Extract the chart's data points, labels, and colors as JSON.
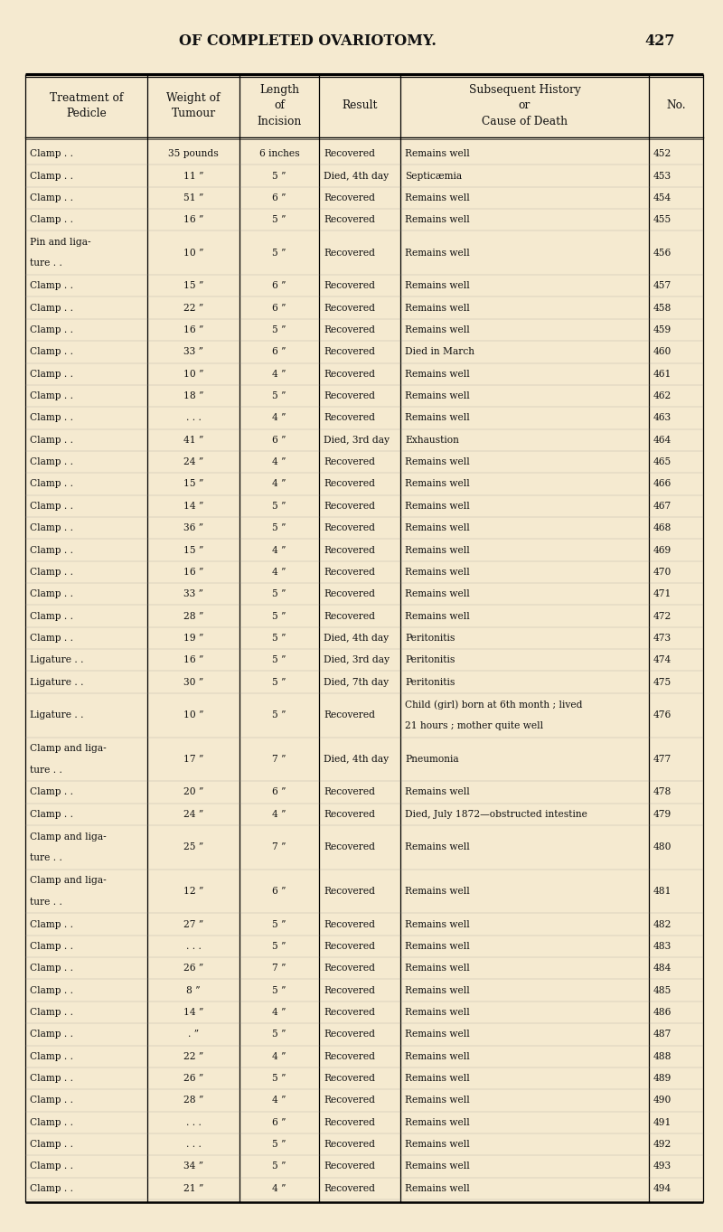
{
  "page_title": "OF COMPLETED OVARIOTOMY.",
  "page_number": "427",
  "bg_color": "#f5ead0",
  "col_headers": [
    "Treatment of\nPedicle",
    "Weight of\nTumour",
    "Length\nof\nIncision",
    "Result",
    "Subsequent History\nor\nCause of Death",
    "No."
  ],
  "rows": [
    [
      "Clamp . .",
      "35 pounds",
      "6 inches",
      "Recovered",
      "Remains well",
      "452"
    ],
    [
      "Clamp . .",
      "11 ”",
      "5 ”",
      "Died, 4th day",
      "Septicæmia",
      "453"
    ],
    [
      "Clamp . .",
      "51 ”",
      "6 ”",
      "Recovered",
      "Remains well",
      "454"
    ],
    [
      "Clamp . .",
      "16 ”",
      "5 ”",
      "Recovered",
      "Remains well",
      "455"
    ],
    [
      "Pin and liga-\nture . .",
      "10 ”",
      "5 ”",
      "Recovered",
      "Remains well",
      "456"
    ],
    [
      "Clamp . .",
      "15 ”",
      "6 ”",
      "Recovered",
      "Remains well",
      "457"
    ],
    [
      "Clamp . .",
      "22 ”",
      "6 ”",
      "Recovered",
      "Remains well",
      "458"
    ],
    [
      "Clamp . .",
      "16 ”",
      "5 ”",
      "Recovered",
      "Remains well",
      "459"
    ],
    [
      "Clamp . .",
      "33 ”",
      "6 ”",
      "Recovered",
      "Died in March",
      "460"
    ],
    [
      "Clamp . .",
      "10 ”",
      "4 ”",
      "Recovered",
      "Remains well",
      "461"
    ],
    [
      "Clamp . .",
      "18 ”",
      "5 ”",
      "Recovered",
      "Remains well",
      "462"
    ],
    [
      "Clamp . .",
      ". . .",
      "4 ”",
      "Recovered",
      "Remains well",
      "463"
    ],
    [
      "Clamp . .",
      "41 ”",
      "6 ”",
      "Died, 3rd day",
      "Exhaustion",
      "464"
    ],
    [
      "Clamp . .",
      "24 ”",
      "4 ”",
      "Recovered",
      "Remains well",
      "465"
    ],
    [
      "Clamp . .",
      "15 ”",
      "4 ”",
      "Recovered",
      "Remains well",
      "466"
    ],
    [
      "Clamp . .",
      "14 ”",
      "5 ”",
      "Recovered",
      "Remains well",
      "467"
    ],
    [
      "Clamp . .",
      "36 ”",
      "5 ”",
      "Recovered",
      "Remains well",
      "468"
    ],
    [
      "Clamp . .",
      "15 ”",
      "4 ”",
      "Recovered",
      "Remains well",
      "469"
    ],
    [
      "Clamp . .",
      "16 ”",
      "4 ”",
      "Recovered",
      "Remains well",
      "470"
    ],
    [
      "Clamp . .",
      "33 ”",
      "5 ”",
      "Recovered",
      "Remains well",
      "471"
    ],
    [
      "Clamp . .",
      "28 ”",
      "5 ”",
      "Recovered",
      "Remains well",
      "472"
    ],
    [
      "Clamp . .",
      "19 ”",
      "5 ”",
      "Died, 4th day",
      "Peritonitis",
      "473"
    ],
    [
      "Ligature . .",
      "16 ”",
      "5 ”",
      "Died, 3rd day",
      "Peritonitis",
      "474"
    ],
    [
      "Ligature . .",
      "30 ”",
      "5 ”",
      "Died, 7th day",
      "Peritonitis",
      "475"
    ],
    [
      "Ligature . .",
      "10 ”",
      "5 ”",
      "Recovered",
      "Child (girl) born at 6th month ; lived\n21 hours ; mother quite well",
      "476"
    ],
    [
      "Clamp and liga-\nture . .",
      "17 ”",
      "7 ”",
      "Died, 4th day",
      "Pneumonia",
      "477"
    ],
    [
      "Clamp . .",
      "20 ”",
      "6 ”",
      "Recovered",
      "Remains well",
      "478"
    ],
    [
      "Clamp . .",
      "24 ”",
      "4 ”",
      "Recovered",
      "Died, July 1872—obstructed intestine",
      "479"
    ],
    [
      "Clamp and liga-\nture . .",
      "25 ”",
      "7 ”",
      "Recovered",
      "Remains well",
      "480"
    ],
    [
      "Clamp and liga-\nture . .",
      "12 ”",
      "6 ”",
      "Recovered",
      "Remains well",
      "481"
    ],
    [
      "Clamp . .",
      "27 ”",
      "5 ”",
      "Recovered",
      "Remains well",
      "482"
    ],
    [
      "Clamp . .",
      ". . .",
      "5 ”",
      "Recovered",
      "Remains well",
      "483"
    ],
    [
      "Clamp . .",
      "26 ”",
      "7 ”",
      "Recovered",
      "Remains well",
      "484"
    ],
    [
      "Clamp . .",
      "8 ”",
      "5 ”",
      "Recovered",
      "Remains well",
      "485"
    ],
    [
      "Clamp . .",
      "14 ”",
      "4 ”",
      "Recovered",
      "Remains well",
      "486"
    ],
    [
      "Clamp . .",
      ". ”",
      "5 ”",
      "Recovered",
      "Remains well",
      "487"
    ],
    [
      "Clamp . .",
      "22 ”",
      "4 ”",
      "Recovered",
      "Remains well",
      "488"
    ],
    [
      "Clamp . .",
      "26 ”",
      "5 ”",
      "Recovered",
      "Remains well",
      "489"
    ],
    [
      "Clamp . .",
      "28 ”",
      "4 ”",
      "Recovered",
      "Remains well",
      "490"
    ],
    [
      "Clamp . .",
      ". . .",
      "6 ”",
      "Recovered",
      "Remains well",
      "491"
    ],
    [
      "Clamp . .",
      ". . .",
      "5 ”",
      "Recovered",
      "Remains well",
      "492"
    ],
    [
      "Clamp . .",
      "34 ”",
      "5 ”",
      "Recovered",
      "Remains well",
      "493"
    ],
    [
      "Clamp . .",
      "21 ”",
      "4 ”",
      "Recovered",
      "Remains well",
      "494"
    ]
  ]
}
